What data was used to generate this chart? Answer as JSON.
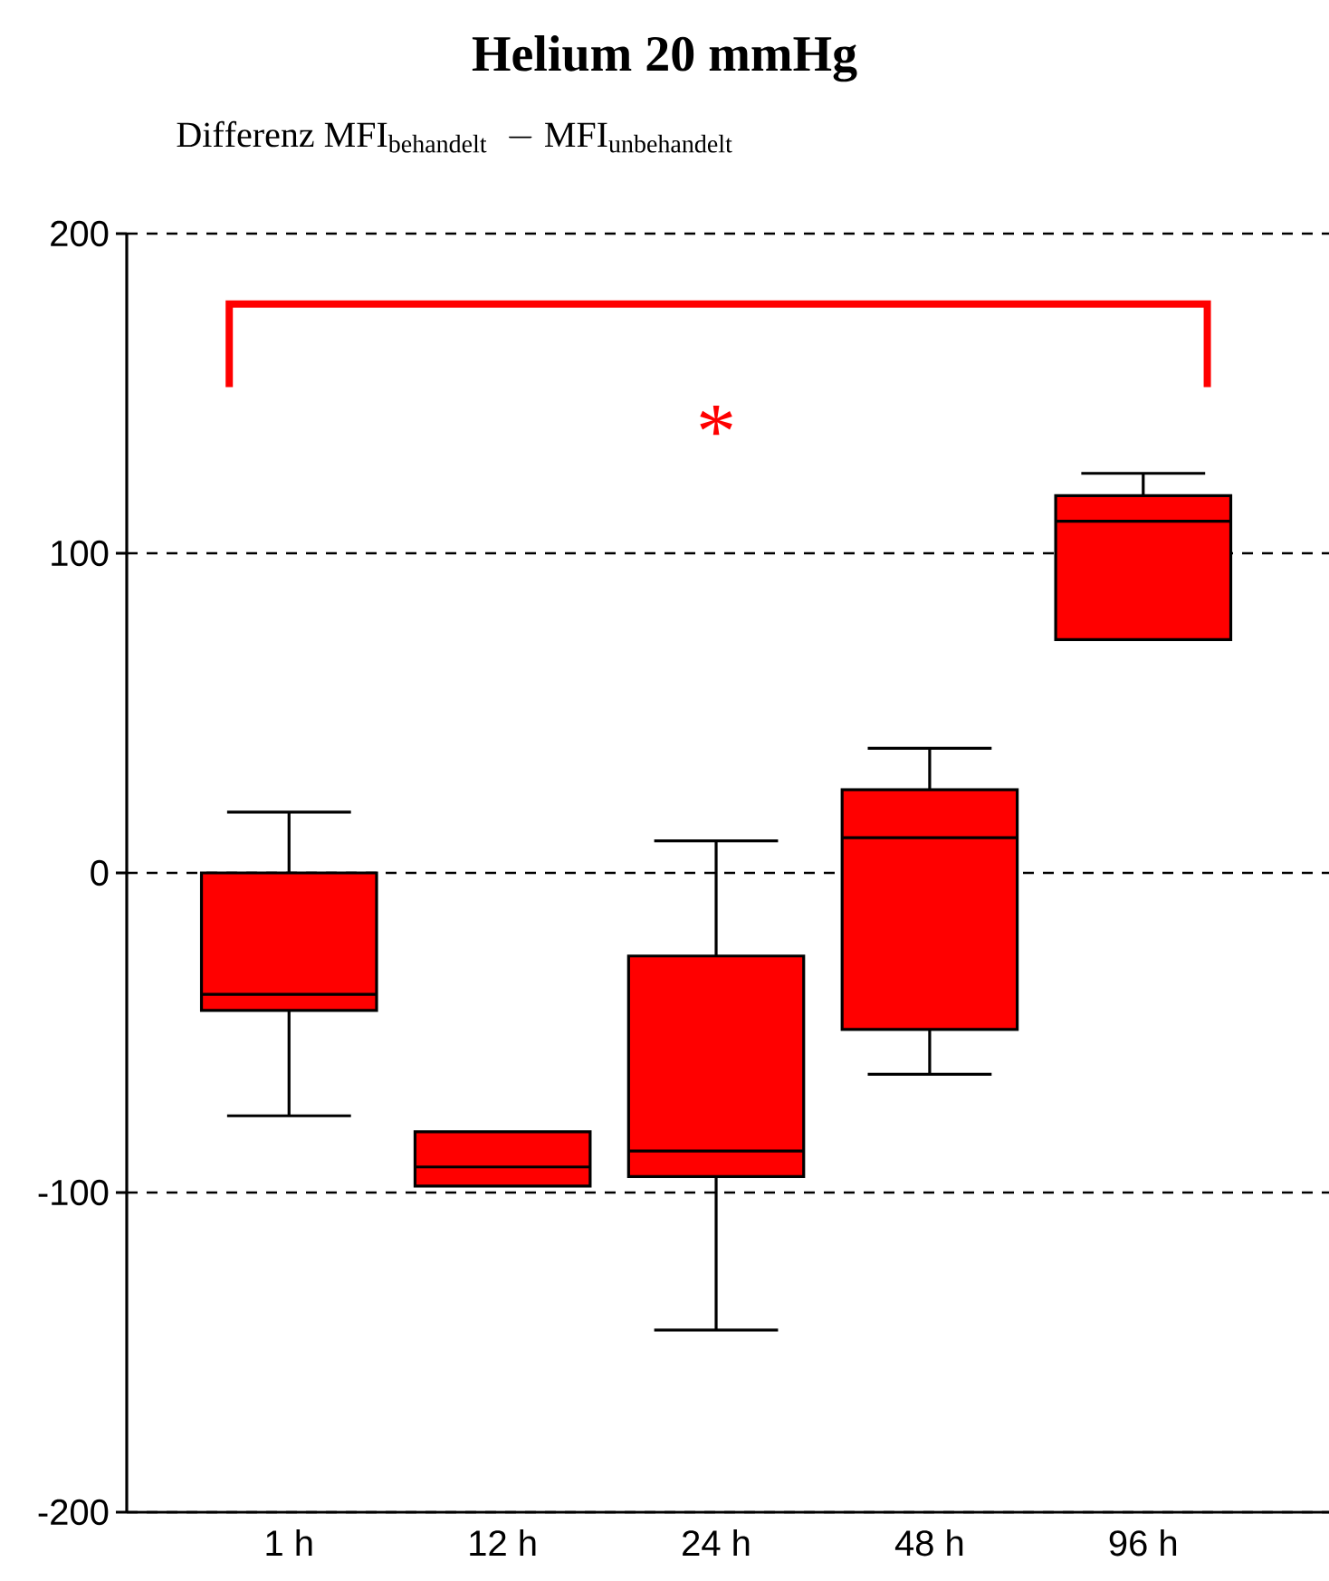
{
  "chart_data": {
    "type": "box",
    "title": "Helium 20 mmHg",
    "ylabel": "\\mathrm{Differenz\\ MFI}_{\\mathrm{behandelt}}\\ \\ \\mathrm{-}\\ \\mathrm{MFI}_{\\mathrm{unbehandelt}}",
    "categories": [
      "1 h",
      "12 h",
      "24 h",
      "48 h",
      "96 h"
    ],
    "color": "#ff0000",
    "boxes": [
      {
        "low": -76,
        "q1": -43,
        "median": -38,
        "q3": 0,
        "high": 19
      },
      {
        "low": -98,
        "q1": -98,
        "median": -92,
        "q3": -81,
        "high": -81
      },
      {
        "low": -143,
        "q1": -95,
        "median": -87,
        "q3": -26,
        "high": 10
      },
      {
        "low": -63,
        "q1": -49,
        "median": 11,
        "q3": 26,
        "high": 39
      },
      {
        "low": 73,
        "q1": 73,
        "median": 110,
        "q3": 118,
        "high": 125
      }
    ],
    "ylim": [
      -200,
      200
    ],
    "yticks": [
      -200,
      -100,
      0,
      100,
      200
    ],
    "grid": "y",
    "annotations": [
      "*"
    ]
  }
}
